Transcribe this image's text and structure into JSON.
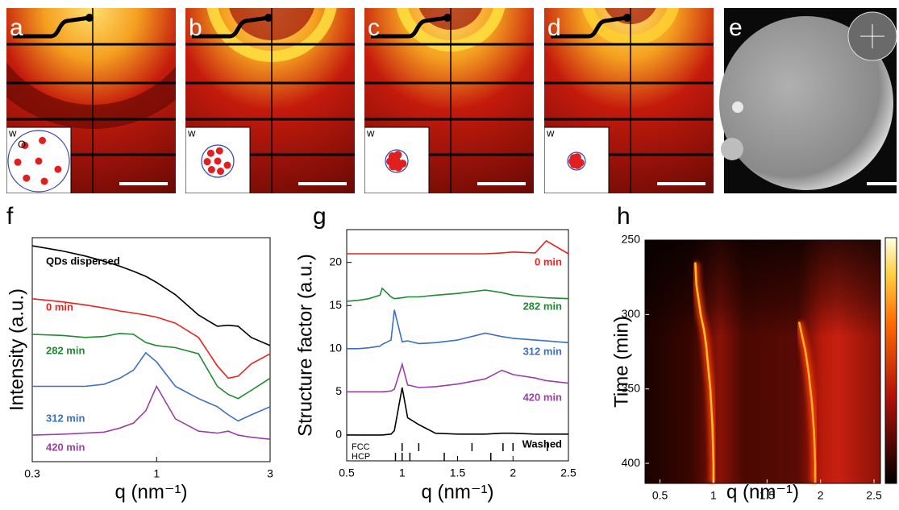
{
  "panel_labels": [
    "a",
    "b",
    "c",
    "d",
    "e",
    "f",
    "g",
    "h"
  ],
  "inset_labels": [
    "w",
    "w",
    "w",
    "w"
  ],
  "inset_o_label": "O",
  "chart_data": [
    {
      "type": "line",
      "xlabel": "q (nm⁻¹)",
      "ylabel": "Intensity (a.u.)",
      "log_x": true,
      "xlim": [
        0.3,
        3
      ],
      "xticks": [
        0.3,
        1,
        3
      ],
      "ylim": [
        -0.8,
        10.2
      ],
      "x": [
        0.3,
        0.4,
        0.5,
        0.6,
        0.7,
        0.8,
        0.9,
        1.0,
        1.2,
        1.5,
        1.8,
        2.0,
        2.2,
        2.5,
        3.0
      ],
      "series": [
        {
          "name": "QDs dispersed",
          "color": "#000000",
          "values": [
            9.8,
            9.55,
            9.3,
            9.05,
            8.8,
            8.55,
            8.3,
            8.0,
            7.4,
            6.4,
            5.85,
            5.9,
            5.85,
            5.3,
            4.9
          ]
        },
        {
          "name": "0 min",
          "color": "#e8231f",
          "values": [
            7.2,
            7.05,
            6.9,
            6.75,
            6.6,
            6.5,
            6.4,
            6.3,
            6.0,
            5.3,
            3.9,
            3.3,
            3.4,
            4.0,
            4.5
          ]
        },
        {
          "name": "282 min",
          "color": "#1e8a2e",
          "values": [
            5.45,
            5.4,
            5.3,
            5.35,
            5.5,
            5.45,
            5.05,
            4.9,
            4.8,
            4.5,
            2.9,
            2.5,
            2.3,
            2.7,
            3.3
          ]
        },
        {
          "name": "312 min",
          "color": "#3b6fc4",
          "values": [
            2.9,
            2.9,
            2.9,
            3.0,
            3.3,
            3.7,
            4.55,
            4.1,
            2.9,
            2.3,
            1.9,
            1.5,
            1.2,
            1.5,
            1.9
          ]
        },
        {
          "name": "420 min",
          "color": "#9b3fa8",
          "values": [
            0.5,
            0.55,
            0.6,
            0.65,
            0.85,
            1.1,
            1.7,
            2.9,
            1.3,
            0.7,
            0.6,
            0.7,
            0.5,
            0.4,
            0.3
          ]
        }
      ]
    },
    {
      "type": "line",
      "xlabel": "q (nm⁻¹)",
      "ylabel": "Structure factor (a.u.)",
      "xlim": [
        0.5,
        2.5
      ],
      "xticks": [
        0.5,
        1,
        1.5,
        2,
        2.5
      ],
      "ylim": [
        -3,
        23.8
      ],
      "yticks": [
        0,
        5,
        10,
        15,
        20
      ],
      "x": [
        0.5,
        0.6,
        0.7,
        0.8,
        0.82,
        0.9,
        0.93,
        1.0,
        1.05,
        1.15,
        1.3,
        1.5,
        1.75,
        1.9,
        2.0,
        2.2,
        2.3,
        2.5
      ],
      "series": [
        {
          "name": "0 min",
          "color": "#e8231f",
          "values": [
            21,
            21,
            21,
            21,
            21,
            21,
            21,
            21,
            21,
            21,
            21,
            21,
            21,
            21.1,
            21.2,
            21.1,
            22.5,
            21
          ]
        },
        {
          "name": "282 min",
          "color": "#1e8a2e",
          "values": [
            15.5,
            15.6,
            15.8,
            16.2,
            17,
            16,
            15.8,
            15.9,
            16,
            16,
            16.2,
            16.4,
            16.8,
            16.5,
            16.2,
            16,
            15.9,
            15.8
          ]
        },
        {
          "name": "312 min",
          "color": "#3b6fc4",
          "values": [
            10,
            10,
            10.1,
            10.3,
            10.5,
            11,
            14.5,
            10.8,
            10.9,
            10.6,
            10.7,
            11,
            11.8,
            11.4,
            11.2,
            11,
            10.9,
            10.7
          ]
        },
        {
          "name": "420 min",
          "color": "#9b3fa8",
          "values": [
            5,
            5,
            5,
            5,
            5,
            5.1,
            5.3,
            8.2,
            5.8,
            5.5,
            5.6,
            5.9,
            6.5,
            7.5,
            7,
            6.6,
            6.3,
            6
          ]
        },
        {
          "name": "Washed",
          "color": "#000000",
          "values": [
            0,
            0,
            0,
            0,
            0,
            0.1,
            0.5,
            5.5,
            2,
            1.2,
            0.2,
            0.1,
            0.1,
            0.2,
            0.2,
            0.1,
            0.1,
            0.1
          ]
        }
      ],
      "reference_peaks": [
        {
          "name": "FCC",
          "q": [
            1.0,
            1.15,
            1.63,
            1.91,
            2.0,
            2.31
          ]
        },
        {
          "name": "HCP",
          "q": [
            0.94,
            1.0,
            1.07,
            1.38,
            1.8
          ]
        }
      ]
    },
    {
      "type": "heatmap",
      "xlabel": "q (nm⁻¹)",
      "ylabel": "Time (min)",
      "xlim": [
        0.36,
        2.56
      ],
      "xticks": [
        0.5,
        1,
        1.5,
        2,
        2.5
      ],
      "ylim": [
        250,
        413.5
      ],
      "yticks": [
        250,
        300,
        350,
        400
      ],
      "ridges": [
        {
          "color": "#ffc020",
          "q": [
            0.83,
            0.84,
            0.86,
            0.88,
            0.91,
            0.93,
            0.95,
            0.97,
            0.99,
            1.0,
            1.0
          ],
          "time": [
            265,
            280,
            290,
            300,
            310,
            320,
            335,
            350,
            375,
            400,
            413
          ]
        },
        {
          "color": "#ffb020",
          "q": [
            1.8,
            1.83,
            1.86,
            1.89,
            1.92,
            1.94,
            1.95,
            1.95
          ],
          "time": [
            305,
            315,
            325,
            340,
            360,
            380,
            400,
            413
          ]
        }
      ]
    }
  ]
}
